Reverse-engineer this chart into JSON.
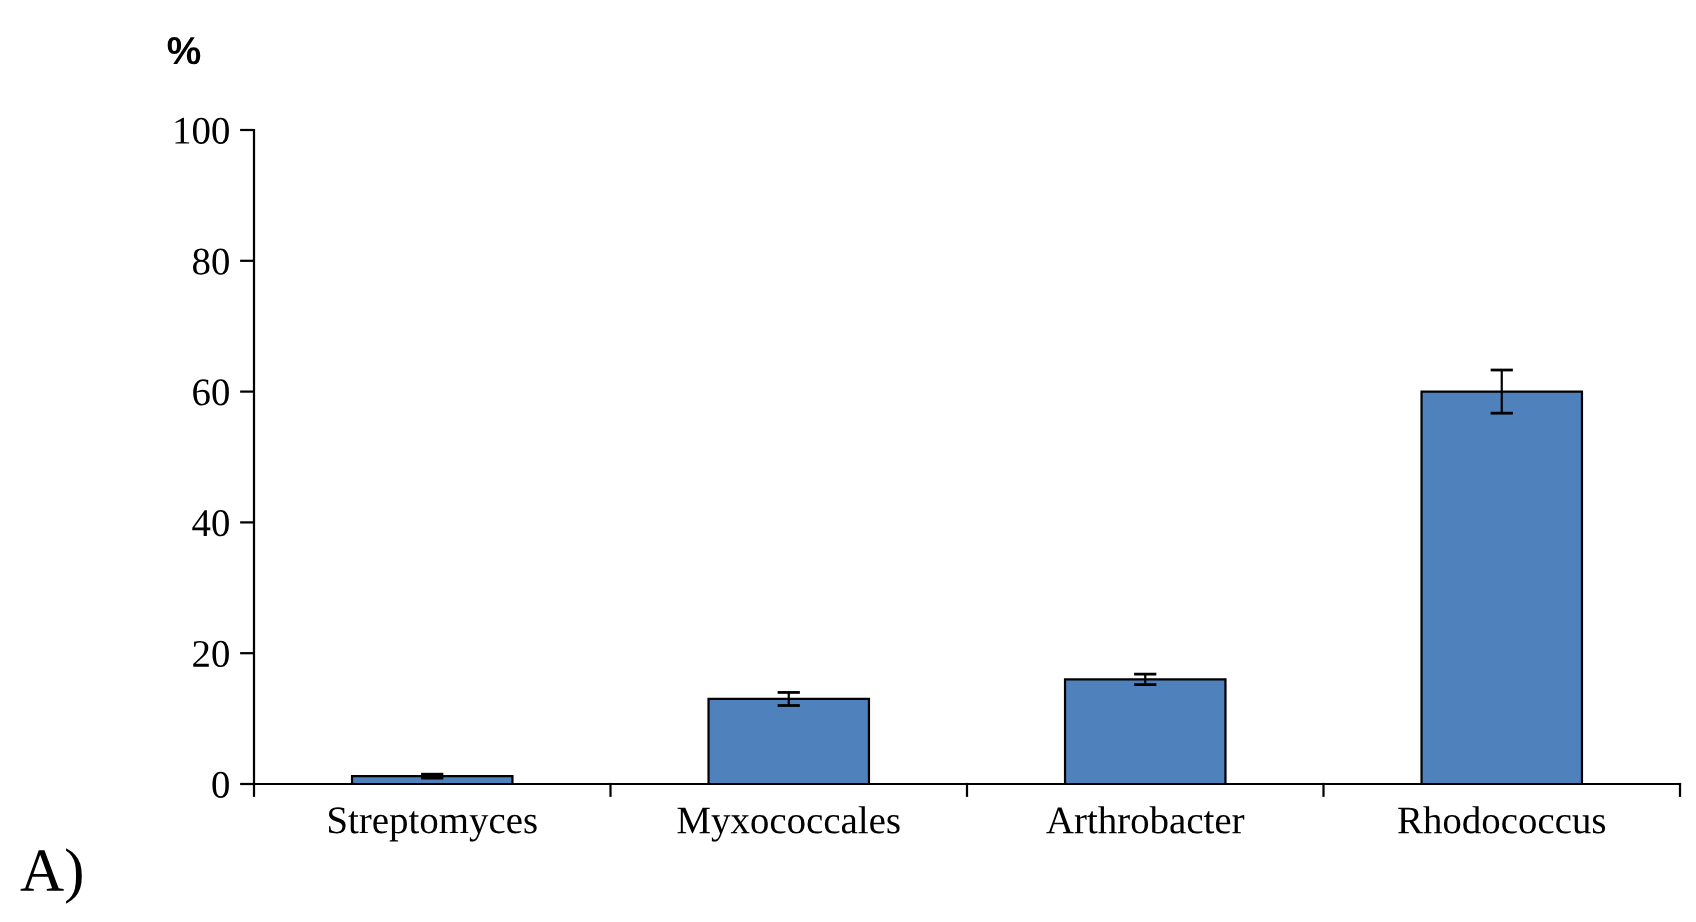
{
  "chart_data": {
    "type": "bar",
    "ylabel": "%",
    "annotations": [
      "A)"
    ],
    "categories": [
      "Streptomyces",
      "Myxococcales",
      "Arthrobacter",
      "Rhodococcus"
    ],
    "values": [
      1.2,
      13,
      16,
      60
    ],
    "errors": [
      0.3,
      1,
      0.8,
      3.3
    ],
    "color": "#4f81bd",
    "ylim": [
      0,
      100
    ],
    "yticks": [
      0,
      20,
      40,
      60,
      80,
      100
    ],
    "grid": false
  }
}
